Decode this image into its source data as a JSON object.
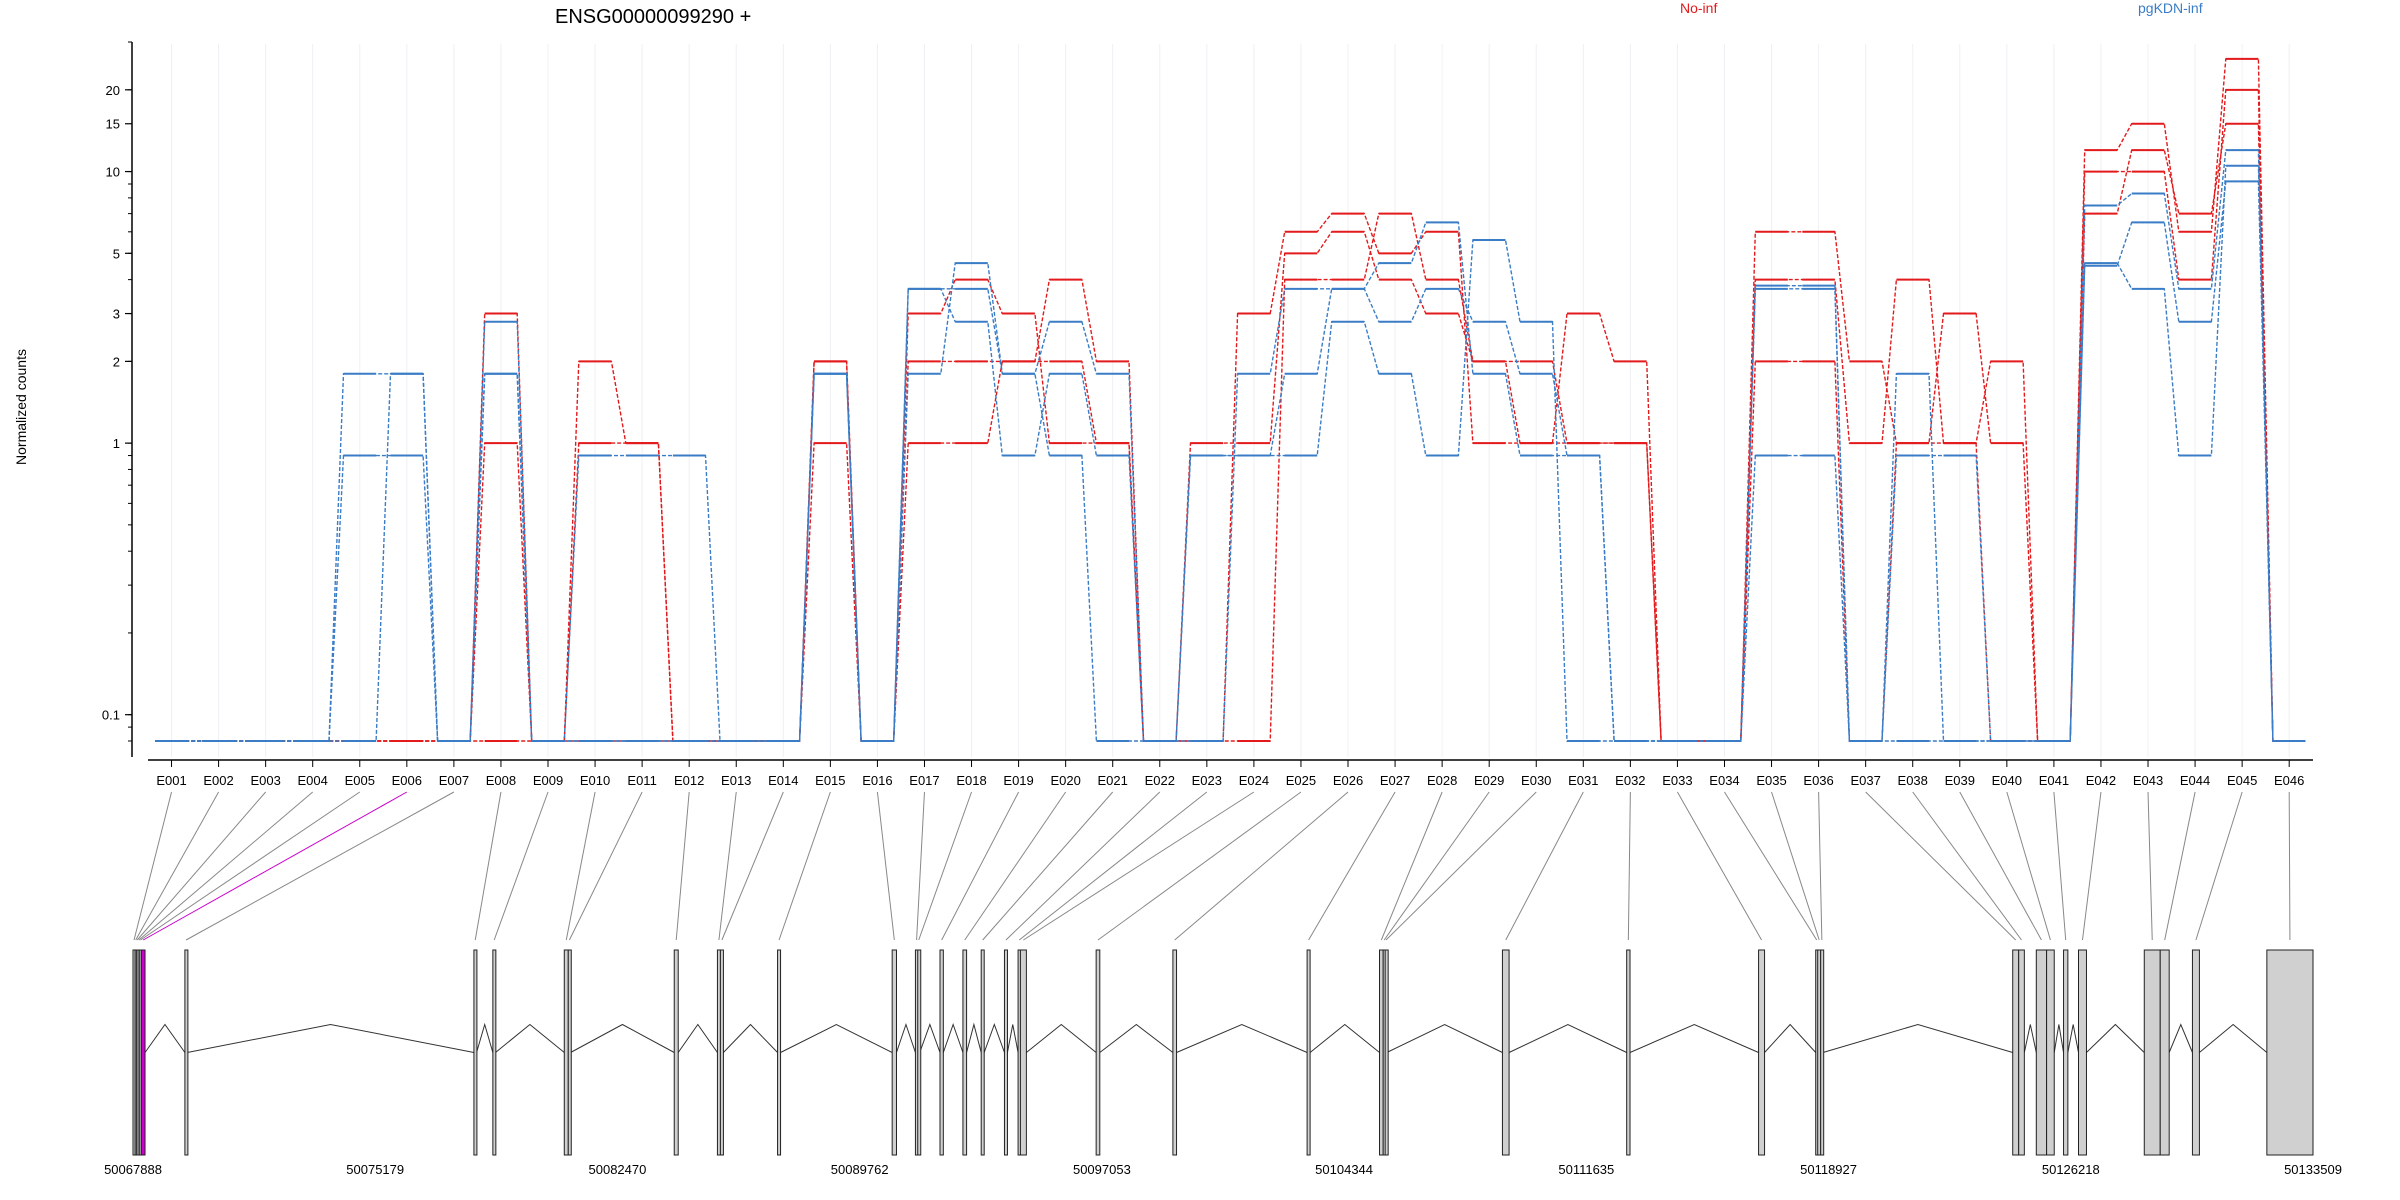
{
  "chart_data": {
    "type": "line",
    "title": "ENSG00000099290 +",
    "ylabel": "Normalized counts",
    "yscale": "log",
    "ylim": [
      0.08,
      30
    ],
    "ytick_labels": [
      "0.1",
      "1",
      "2",
      "3",
      "5",
      "10",
      "15",
      "20"
    ],
    "ytick_values": [
      0.1,
      1,
      2,
      3,
      5,
      10,
      15,
      20
    ],
    "grid": "vertical lines per exon",
    "legend_position": "top",
    "colors": {
      "No-inf": "#e31a1c",
      "pgKDN-inf": "#3a7dc6",
      "highlight": "#cc00cc",
      "exon_fill": "#d0d0d0"
    },
    "categories": [
      "E001",
      "E002",
      "E003",
      "E004",
      "E005",
      "E006",
      "E007",
      "E008",
      "E009",
      "E010",
      "E011",
      "E012",
      "E013",
      "E014",
      "E015",
      "E016",
      "E017",
      "E018",
      "E019",
      "E020",
      "E021",
      "E022",
      "E023",
      "E024",
      "E025",
      "E026",
      "E027",
      "E028",
      "E029",
      "E030",
      "E031",
      "E032",
      "E033",
      "E034",
      "E035",
      "E036",
      "E037",
      "E038",
      "E039",
      "E040",
      "E041",
      "E042",
      "E043",
      "E044",
      "E045",
      "E046"
    ],
    "groups": [
      {
        "name": "No-inf",
        "color": "#e31a1c",
        "samples": [
          [
            0.08,
            0.08,
            0.08,
            0.08,
            0.08,
            0.08,
            0.08,
            1,
            0.08,
            2,
            1,
            0.08,
            0.08,
            0.08,
            2,
            0.08,
            2,
            2,
            2,
            2,
            1,
            0.08,
            1,
            1,
            5,
            6,
            4,
            3,
            2,
            1,
            3,
            2,
            0.08,
            0.08,
            4,
            4,
            1,
            4,
            1,
            0.08,
            0.08,
            10,
            10,
            4,
            20,
            0.08
          ],
          [
            0.08,
            0.08,
            0.08,
            0.08,
            0.08,
            0.08,
            0.08,
            3,
            0.08,
            1,
            1,
            0.08,
            0.08,
            0.08,
            1,
            0.08,
            1,
            1,
            2,
            4,
            2,
            0.08,
            0.08,
            3,
            6,
            7,
            5,
            6,
            1,
            1,
            1,
            1,
            0.08,
            0.08,
            6,
            6,
            2,
            1,
            1,
            2,
            0.08,
            12,
            15,
            6,
            26,
            0.08
          ],
          [
            0.08,
            0.08,
            0.08,
            0.08,
            0.08,
            0.08,
            0.08,
            0.08,
            0.08,
            0.08,
            0.08,
            0.08,
            0.08,
            0.08,
            2,
            0.08,
            3,
            4,
            3,
            1,
            1,
            0.08,
            0.08,
            0.08,
            4,
            4,
            7,
            4,
            2,
            2,
            1,
            1,
            0.08,
            0.08,
            2,
            2,
            0.08,
            1,
            3,
            1,
            0.08,
            7,
            12,
            7,
            15,
            0.08
          ]
        ]
      },
      {
        "name": "pgKDN-inf",
        "color": "#3a7dc6",
        "samples": [
          [
            0.08,
            0.08,
            0.08,
            0.08,
            1.8,
            1.8,
            0.08,
            1.8,
            0.08,
            0.9,
            0.9,
            0.9,
            0.08,
            0.08,
            1.8,
            0.08,
            3.7,
            2.8,
            0.9,
            1.8,
            0.9,
            0.08,
            0.9,
            0.9,
            1.8,
            3.7,
            2.8,
            3.7,
            2.8,
            1.8,
            0.9,
            0.08,
            0.08,
            0.08,
            3.7,
            3.7,
            0.08,
            0.9,
            0.9,
            0.08,
            0.08,
            4.5,
            6.5,
            2.8,
            9.2,
            0.08
          ],
          [
            0.08,
            0.08,
            0.08,
            0.08,
            0.9,
            0.9,
            0.08,
            2.8,
            0.08,
            0.08,
            0.08,
            0.08,
            0.08,
            0.08,
            1.8,
            0.08,
            3.7,
            3.7,
            1.8,
            2.8,
            1.8,
            0.08,
            0.08,
            1.8,
            3.7,
            3.7,
            4.6,
            6.5,
            1.8,
            0.9,
            0.9,
            0.08,
            0.08,
            0.08,
            0.9,
            0.9,
            0.08,
            1.8,
            0.08,
            0.08,
            0.08,
            7.5,
            8.3,
            3.7,
            12,
            0.08
          ],
          [
            0.08,
            0.08,
            0.08,
            0.08,
            0.08,
            1.8,
            0.08,
            1.8,
            0.08,
            0.08,
            0.08,
            0.08,
            0.08,
            0.08,
            1.8,
            0.08,
            1.8,
            4.6,
            1.8,
            0.9,
            0.08,
            0.08,
            0.9,
            0.9,
            0.9,
            2.8,
            1.8,
            0.9,
            5.6,
            2.8,
            0.08,
            0.08,
            0.08,
            0.08,
            3.8,
            3.8,
            0.08,
            0.08,
            0.08,
            0.08,
            0.08,
            4.6,
            3.7,
            0.9,
            10.5,
            0.08
          ]
        ]
      }
    ],
    "genomic_axis": {
      "tick_labels": [
        "50067888",
        "50075179",
        "50082470",
        "50089762",
        "50097053",
        "50104344",
        "50111635",
        "50118927",
        "50126218",
        "50133509"
      ],
      "tick_values": [
        50067888,
        50075179,
        50082470,
        50089762,
        50097053,
        50104344,
        50111635,
        50118927,
        50126218,
        50133509
      ],
      "range": [
        50067888,
        50133509
      ]
    },
    "exons": [
      {
        "id": "E001",
        "start": 50067888,
        "end": 50067950,
        "significant": false
      },
      {
        "id": "E002",
        "start": 50067950,
        "end": 50067990,
        "significant": false
      },
      {
        "id": "E003",
        "start": 50067990,
        "end": 50068040,
        "significant": false
      },
      {
        "id": "E004",
        "start": 50068040,
        "end": 50068090,
        "significant": false
      },
      {
        "id": "E005",
        "start": 50068090,
        "end": 50068140,
        "significant": false
      },
      {
        "id": "E006",
        "start": 50068140,
        "end": 50068250,
        "significant": true
      },
      {
        "id": "E007",
        "start": 50069450,
        "end": 50069520,
        "significant": false
      },
      {
        "id": "E008",
        "start": 50078150,
        "end": 50078230,
        "significant": false
      },
      {
        "id": "E009",
        "start": 50078720,
        "end": 50078800,
        "significant": false
      },
      {
        "id": "E010",
        "start": 50080870,
        "end": 50080990,
        "significant": false
      },
      {
        "id": "E011",
        "start": 50080990,
        "end": 50081060,
        "significant": false
      },
      {
        "id": "E012",
        "start": 50084180,
        "end": 50084300,
        "significant": false
      },
      {
        "id": "E013",
        "start": 50085480,
        "end": 50085570,
        "significant": false
      },
      {
        "id": "E014",
        "start": 50085570,
        "end": 50085660,
        "significant": false
      },
      {
        "id": "E015",
        "start": 50087290,
        "end": 50087380,
        "significant": false
      },
      {
        "id": "E016",
        "start": 50090740,
        "end": 50090870,
        "significant": false
      },
      {
        "id": "E017",
        "start": 50091440,
        "end": 50091510,
        "significant": false
      },
      {
        "id": "E018",
        "start": 50091510,
        "end": 50091570,
        "significant": false
      },
      {
        "id": "E019",
        "start": 50092180,
        "end": 50092280,
        "significant": false
      },
      {
        "id": "E020",
        "start": 50092870,
        "end": 50092980,
        "significant": false
      },
      {
        "id": "E021",
        "start": 50093420,
        "end": 50093510,
        "significant": false
      },
      {
        "id": "E022",
        "start": 50094120,
        "end": 50094210,
        "significant": false
      },
      {
        "id": "E023",
        "start": 50094530,
        "end": 50094600,
        "significant": false
      },
      {
        "id": "E024",
        "start": 50094600,
        "end": 50094780,
        "significant": false
      },
      {
        "id": "E025",
        "start": 50096880,
        "end": 50096990,
        "significant": false
      },
      {
        "id": "E026",
        "start": 50099190,
        "end": 50099300,
        "significant": false
      },
      {
        "id": "E027",
        "start": 50103230,
        "end": 50103320,
        "significant": false
      },
      {
        "id": "E028",
        "start": 50105410,
        "end": 50105520,
        "significant": false
      },
      {
        "id": "E029",
        "start": 50105520,
        "end": 50105580,
        "significant": false
      },
      {
        "id": "E030",
        "start": 50105580,
        "end": 50105630,
        "significant": false
      },
      {
        "id": "E031",
        "start": 50109110,
        "end": 50109310,
        "significant": false
      },
      {
        "id": "E032",
        "start": 50112850,
        "end": 50112950,
        "significant": false
      },
      {
        "id": "E033",
        "start": 50116820,
        "end": 50117000,
        "significant": false
      },
      {
        "id": "E034",
        "start": 50118540,
        "end": 50118600,
        "significant": false
      },
      {
        "id": "E035",
        "start": 50118600,
        "end": 50118690,
        "significant": false
      },
      {
        "id": "E036",
        "start": 50118690,
        "end": 50118760,
        "significant": false
      },
      {
        "id": "E037",
        "start": 50124470,
        "end": 50124650,
        "significant": false
      },
      {
        "id": "E038",
        "start": 50124650,
        "end": 50124820,
        "significant": false
      },
      {
        "id": "E039",
        "start": 50125180,
        "end": 50125490,
        "significant": false
      },
      {
        "id": "E040",
        "start": 50125490,
        "end": 50125720,
        "significant": false
      },
      {
        "id": "E041",
        "start": 50126000,
        "end": 50126130,
        "significant": false
      },
      {
        "id": "E042",
        "start": 50126450,
        "end": 50126690,
        "significant": false
      },
      {
        "id": "E043",
        "start": 50128430,
        "end": 50128910,
        "significant": false
      },
      {
        "id": "E044",
        "start": 50128910,
        "end": 50129180,
        "significant": false
      },
      {
        "id": "E045",
        "start": 50129880,
        "end": 50130090,
        "significant": false
      },
      {
        "id": "E046",
        "start": 50132120,
        "end": 50133509,
        "significant": false
      }
    ]
  }
}
